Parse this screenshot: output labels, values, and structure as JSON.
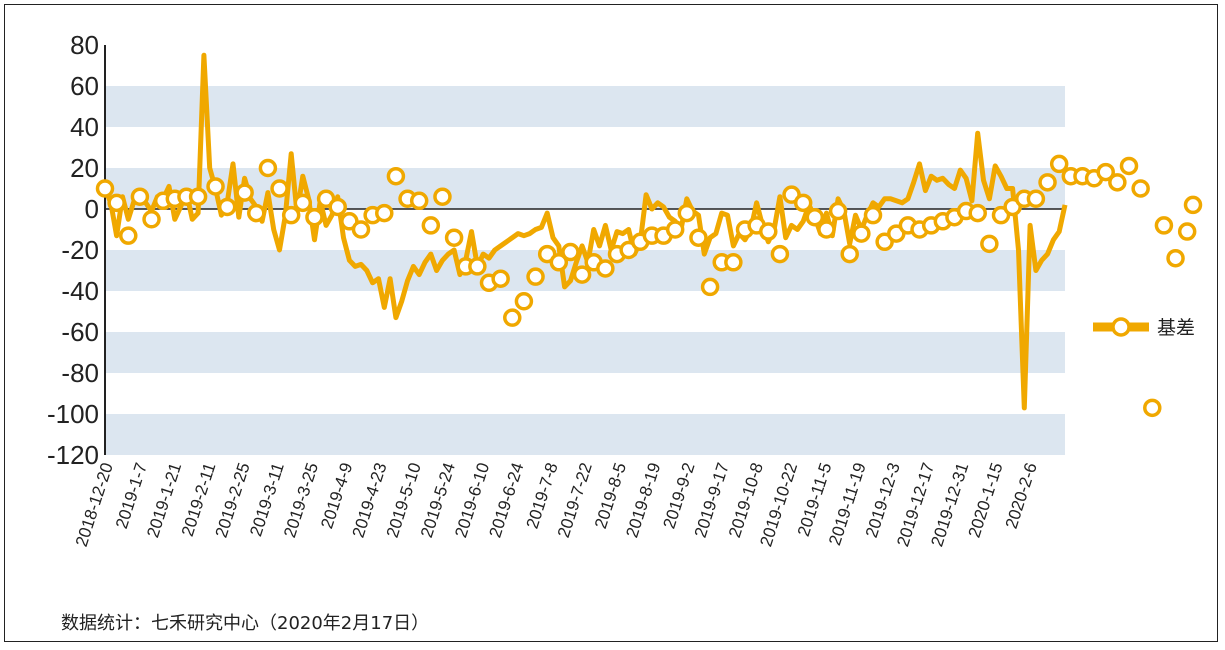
{
  "chart_data": {
    "type": "line",
    "title": "",
    "xlabel": "",
    "ylabel": "",
    "ylim": [
      -120,
      80
    ],
    "yticks": [
      80,
      60,
      40,
      20,
      0,
      -20,
      -40,
      -60,
      -80,
      -100,
      -120
    ],
    "x_tick_labels": [
      "2018-12-20",
      "2019-1-7",
      "2019-1-21",
      "2019-2-11",
      "2019-2-25",
      "2019-3-11",
      "2019-3-25",
      "2019-4-9",
      "2019-4-23",
      "2019-5-10",
      "2019-5-24",
      "2019-6-10",
      "2019-6-24",
      "2019-7-8",
      "2019-7-22",
      "2019-8-5",
      "2019-8-19",
      "2019-9-2",
      "2019-9-17",
      "2019-10-8",
      "2019-10-22",
      "2019-11-5",
      "2019-11-19",
      "2019-12-3",
      "2019-12-17",
      "2019-12-31",
      "2020-1-15",
      "2020-2-6"
    ],
    "grid_bands": "alternating horizontal bands",
    "legend_position": "right",
    "line_color": "#f0a800",
    "band_color": "#dce6f0",
    "series": [
      {
        "name": "基差",
        "daily_values": [
          10,
          3,
          -13,
          6,
          -5,
          4,
          5,
          3,
          -1,
          6,
          5,
          11,
          -5,
          1,
          8,
          -5,
          -2,
          75,
          20,
          10,
          -3,
          3,
          22,
          -4,
          15,
          5,
          1,
          -6,
          8,
          -10,
          -20,
          -3,
          27,
          -2,
          16,
          5,
          -15,
          4,
          -8,
          -3,
          6,
          -14,
          -25,
          -28,
          -27,
          -30,
          -36,
          -34,
          -48,
          -34,
          -53,
          -45,
          -35,
          -28,
          -32,
          -26,
          -22,
          -30,
          -25,
          -22,
          -20,
          -32,
          -25,
          -11,
          -28,
          -22,
          -24,
          -20,
          -18,
          -16,
          -14,
          -12,
          -13,
          -12,
          -10,
          -9,
          -2,
          -14,
          -18,
          -38,
          -35,
          -26,
          -18,
          -26,
          -10,
          -18,
          -8,
          -20,
          -11,
          -12,
          -10,
          -22,
          -16,
          7,
          0,
          3,
          1,
          -4,
          -6,
          -10,
          5,
          -1,
          -3,
          -22,
          -14,
          -12,
          -2,
          -3,
          -18,
          -12,
          -15,
          -10,
          3,
          -8,
          -16,
          -10,
          6,
          -14,
          -8,
          -10,
          -6,
          2,
          -4,
          -12,
          -2,
          -13,
          5,
          -1,
          -17,
          -3,
          -10,
          -3,
          3,
          1,
          5,
          5,
          4,
          3,
          5,
          13,
          22,
          9,
          16,
          14,
          15,
          12,
          10,
          19,
          15,
          4,
          37,
          14,
          5,
          21,
          16,
          10,
          10,
          -20,
          -97,
          -8,
          -30,
          -25,
          -22,
          -15,
          -11,
          2
        ],
        "markers": [
          [
            0,
            10
          ],
          [
            2,
            3
          ],
          [
            4,
            -13
          ],
          [
            6,
            6
          ],
          [
            8,
            -5
          ],
          [
            10,
            4
          ],
          [
            12,
            5
          ],
          [
            14,
            6
          ],
          [
            16,
            6
          ],
          [
            19,
            11
          ],
          [
            21,
            1
          ],
          [
            24,
            8
          ],
          [
            26,
            -2
          ],
          [
            28,
            20
          ],
          [
            30,
            10
          ],
          [
            32,
            -3
          ],
          [
            34,
            3
          ],
          [
            36,
            -4
          ],
          [
            38,
            5
          ],
          [
            40,
            1
          ],
          [
            42,
            -6
          ],
          [
            44,
            -10
          ],
          [
            46,
            -3
          ],
          [
            48,
            -2
          ],
          [
            50,
            16
          ],
          [
            52,
            5
          ],
          [
            54,
            4
          ],
          [
            56,
            -8
          ],
          [
            58,
            6
          ],
          [
            60,
            -14
          ],
          [
            62,
            -28
          ],
          [
            64,
            -28
          ],
          [
            66,
            -36
          ],
          [
            68,
            -34
          ],
          [
            70,
            -53
          ],
          [
            72,
            -45
          ],
          [
            74,
            -33
          ],
          [
            76,
            -22
          ],
          [
            78,
            -26
          ],
          [
            80,
            -21
          ],
          [
            82,
            -32
          ],
          [
            84,
            -26
          ],
          [
            86,
            -29
          ],
          [
            88,
            -22
          ],
          [
            90,
            -20
          ],
          [
            92,
            -16
          ],
          [
            94,
            -13
          ],
          [
            96,
            -13
          ],
          [
            98,
            -10
          ],
          [
            100,
            -2
          ],
          [
            102,
            -14
          ],
          [
            104,
            -38
          ],
          [
            106,
            -26
          ],
          [
            108,
            -26
          ],
          [
            110,
            -10
          ],
          [
            112,
            -8
          ],
          [
            114,
            -11
          ],
          [
            116,
            -22
          ],
          [
            118,
            7
          ],
          [
            120,
            3
          ],
          [
            122,
            -4
          ],
          [
            124,
            -10
          ],
          [
            126,
            -1
          ],
          [
            128,
            -22
          ],
          [
            130,
            -12
          ],
          [
            132,
            -3
          ],
          [
            134,
            -16
          ],
          [
            136,
            -12
          ],
          [
            138,
            -8
          ],
          [
            140,
            -10
          ],
          [
            142,
            -8
          ],
          [
            144,
            -6
          ],
          [
            146,
            -4
          ],
          [
            148,
            -1
          ],
          [
            150,
            -2
          ],
          [
            152,
            -17
          ],
          [
            154,
            -3
          ],
          [
            156,
            1
          ],
          [
            158,
            5
          ],
          [
            160,
            5
          ],
          [
            162,
            13
          ],
          [
            164,
            22
          ],
          [
            166,
            16
          ],
          [
            168,
            16
          ],
          [
            170,
            15
          ],
          [
            172,
            18
          ],
          [
            174,
            13
          ],
          [
            176,
            21
          ],
          [
            178,
            10
          ],
          [
            180,
            -97
          ],
          [
            182,
            -8
          ],
          [
            184,
            -24
          ],
          [
            186,
            -11
          ],
          [
            187,
            2
          ]
        ]
      }
    ]
  },
  "source_note": "数据统计：七禾研究中心（2020年2月17日）"
}
